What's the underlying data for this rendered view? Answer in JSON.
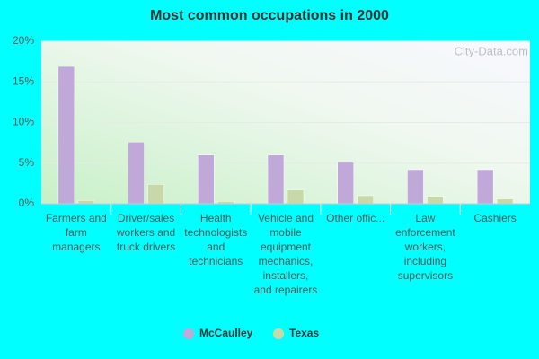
{
  "chart_data": {
    "type": "bar",
    "title": "Most common occupations in 2000",
    "watermark": "City-Data.com",
    "categories": [
      "Farmers and farm managers",
      "Driver/sales workers and truck drivers",
      "Health technologists and technicians",
      "Vehicle and mobile equipment mechanics, installers, and repairers",
      "Other offic...",
      "Law enforcement workers, including supervisors",
      "Cashiers"
    ],
    "series": [
      {
        "name": "McCaulley",
        "color": "#c0a8d8",
        "values": [
          16.9,
          7.6,
          6.0,
          6.0,
          5.1,
          4.2,
          4.2
        ]
      },
      {
        "name": "Texas",
        "color": "#c8d8a8",
        "values": [
          0.4,
          2.4,
          0.3,
          1.7,
          1.0,
          0.9,
          0.6
        ]
      }
    ],
    "ylim": [
      0,
      20
    ],
    "yticks": [
      {
        "value": 0,
        "label": "0%"
      },
      {
        "value": 5,
        "label": "5%"
      },
      {
        "value": 10,
        "label": "10%"
      },
      {
        "value": 15,
        "label": "15%"
      },
      {
        "value": 20,
        "label": "20%"
      }
    ],
    "grid": true
  }
}
